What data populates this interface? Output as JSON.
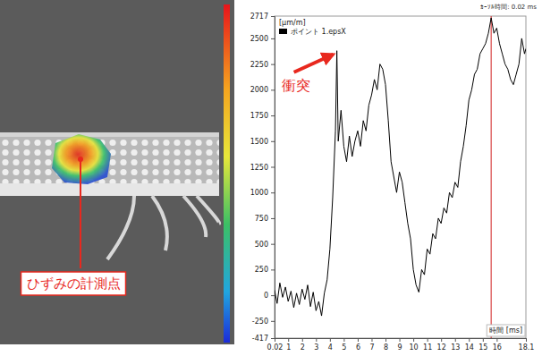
{
  "chart_data": {
    "type": "line",
    "y_label": "[μm/m]",
    "x_label": "時間 [ms]",
    "cursor_text": "ｶｰｿﾙ時間: 0.02 ms",
    "vline": 15.6,
    "legend": "top-left",
    "grid": false,
    "xlim": [
      0.02,
      18.1
    ],
    "xticks": [
      0.02,
      1,
      2,
      3,
      4,
      5,
      6,
      7,
      8,
      9,
      10,
      11,
      12,
      13,
      14,
      15,
      16,
      18.1
    ],
    "ylim": [
      -417,
      2717
    ],
    "yticks": [
      -417,
      -250,
      0,
      250,
      500,
      750,
      1000,
      1250,
      1500,
      1750,
      2000,
      2250,
      2500,
      2717
    ],
    "x": [
      0.02,
      0.2,
      0.4,
      0.6,
      0.8,
      1.0,
      1.2,
      1.4,
      1.6,
      1.8,
      2.0,
      2.2,
      2.4,
      2.6,
      2.8,
      3.0,
      3.2,
      3.4,
      3.6,
      3.8,
      4.0,
      4.2,
      4.4,
      4.5,
      4.6,
      4.8,
      5.0,
      5.2,
      5.4,
      5.6,
      5.8,
      6.0,
      6.2,
      6.4,
      6.6,
      6.8,
      7.0,
      7.2,
      7.4,
      7.6,
      7.8,
      8.0,
      8.2,
      8.4,
      8.6,
      8.8,
      9.0,
      9.2,
      9.4,
      9.6,
      9.8,
      10.0,
      10.2,
      10.4,
      10.6,
      10.8,
      11.0,
      11.2,
      11.4,
      11.6,
      11.8,
      12.0,
      12.2,
      12.4,
      12.6,
      12.8,
      13.0,
      13.2,
      13.4,
      13.6,
      13.8,
      14.0,
      14.2,
      14.4,
      14.6,
      14.8,
      15.0,
      15.2,
      15.4,
      15.6,
      15.8,
      16.0,
      16.2,
      16.4,
      16.6,
      16.8,
      17.0,
      17.2,
      17.4,
      17.6,
      17.8,
      18.0,
      18.1
    ],
    "series": [
      {
        "name": "ポイント 1.epsX",
        "color": "#000000",
        "values": [
          50,
          -80,
          120,
          -20,
          80,
          -60,
          40,
          -120,
          20,
          -90,
          60,
          -40,
          100,
          -110,
          30,
          -150,
          -60,
          -200,
          20,
          150,
          450,
          950,
          1600,
          2380,
          1500,
          1800,
          1450,
          1300,
          1550,
          1350,
          1500,
          1600,
          1450,
          1700,
          1600,
          1850,
          1950,
          2100,
          2000,
          2250,
          2200,
          2050,
          1700,
          1300,
          1150,
          1000,
          1200,
          1100,
          900,
          700,
          550,
          250,
          100,
          30,
          250,
          200,
          450,
          400,
          600,
          550,
          750,
          700,
          850,
          800,
          1000,
          950,
          1100,
          1050,
          1300,
          1450,
          1650,
          1900,
          2000,
          2150,
          2200,
          2350,
          2400,
          2450,
          2550,
          2700,
          2550,
          2600,
          2450,
          2350,
          2250,
          2200,
          2100,
          2050,
          2150,
          2250,
          2500,
          2350,
          2400
        ]
      }
    ],
    "annotations": [
      {
        "text": "衝突",
        "x": 4.5,
        "y": 2380,
        "color": "#e8281e"
      }
    ]
  },
  "photo": {
    "label": "ひずみの計測点"
  }
}
